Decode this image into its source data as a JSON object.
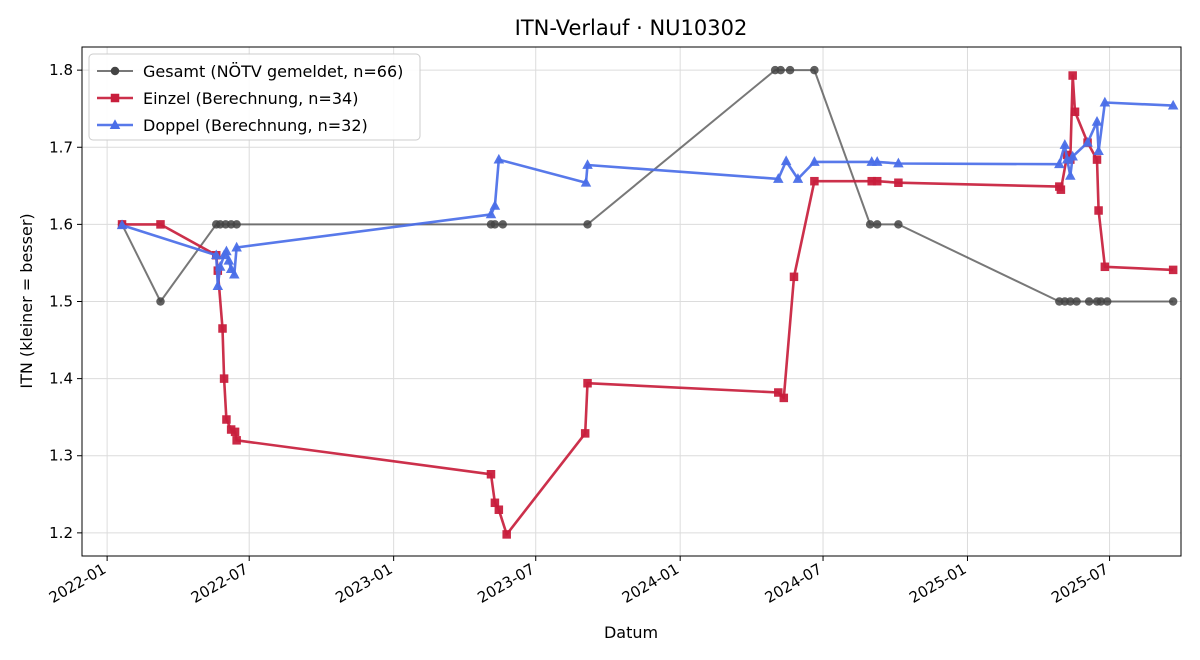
{
  "chart_data": {
    "type": "line",
    "title": "ITN-Verlauf · NU10302",
    "xlabel": "Datum",
    "ylabel": "ITN  (kleiner = besser)",
    "x_axis_type": "date",
    "xlim": [
      "2021-11-30",
      "2025-09-30"
    ],
    "ylim": [
      1.17,
      1.83
    ],
    "x_ticks": [
      "2022-01",
      "2022-07",
      "2023-01",
      "2023-07",
      "2024-01",
      "2024-07",
      "2025-01",
      "2025-07"
    ],
    "y_ticks": [
      1.2,
      1.3,
      1.4,
      1.5,
      1.6,
      1.7,
      1.8
    ],
    "grid": true,
    "legend_position": "top-left",
    "series": [
      {
        "name": "Gesamt (NÖTV gemeldet, n=66)",
        "color": "#444444",
        "marker": "circle",
        "points": [
          [
            "2022-01-20",
            1.6
          ],
          [
            "2022-03-10",
            1.5
          ],
          [
            "2022-05-20",
            1.6
          ],
          [
            "2022-05-25",
            1.6
          ],
          [
            "2022-06-01",
            1.6
          ],
          [
            "2022-06-08",
            1.6
          ],
          [
            "2022-06-15",
            1.6
          ],
          [
            "2023-05-05",
            1.6
          ],
          [
            "2023-05-10",
            1.6
          ],
          [
            "2023-05-20",
            1.6
          ],
          [
            "2023-09-05",
            1.6
          ],
          [
            "2024-05-01",
            1.8
          ],
          [
            "2024-05-08",
            1.8
          ],
          [
            "2024-05-20",
            1.8
          ],
          [
            "2024-06-20",
            1.8
          ],
          [
            "2024-08-30",
            1.6
          ],
          [
            "2024-09-08",
            1.6
          ],
          [
            "2024-10-05",
            1.6
          ],
          [
            "2025-04-28",
            1.5
          ],
          [
            "2025-05-05",
            1.5
          ],
          [
            "2025-05-12",
            1.5
          ],
          [
            "2025-05-20",
            1.5
          ],
          [
            "2025-06-05",
            1.5
          ],
          [
            "2025-06-15",
            1.5
          ],
          [
            "2025-06-20",
            1.5
          ],
          [
            "2025-06-28",
            1.5
          ],
          [
            "2025-09-20",
            1.5
          ]
        ]
      },
      {
        "name": "Einzel (Berechnung, n=34)",
        "color": "#c81e3c",
        "marker": "square",
        "points": [
          [
            "2022-01-20",
            1.6
          ],
          [
            "2022-03-10",
            1.6
          ],
          [
            "2022-05-20",
            1.56
          ],
          [
            "2022-05-22",
            1.54
          ],
          [
            "2022-05-28",
            1.465
          ],
          [
            "2022-05-30",
            1.4
          ],
          [
            "2022-06-02",
            1.347
          ],
          [
            "2022-06-08",
            1.334
          ],
          [
            "2022-06-13",
            1.331
          ],
          [
            "2022-06-15",
            1.32
          ],
          [
            "2023-05-05",
            1.276
          ],
          [
            "2023-05-10",
            1.239
          ],
          [
            "2023-05-15",
            1.23
          ],
          [
            "2023-05-25",
            1.198
          ],
          [
            "2023-09-02",
            1.329
          ],
          [
            "2023-09-05",
            1.394
          ],
          [
            "2024-05-05",
            1.382
          ],
          [
            "2024-05-12",
            1.375
          ],
          [
            "2024-05-25",
            1.532
          ],
          [
            "2024-06-20",
            1.656
          ],
          [
            "2024-09-01",
            1.656
          ],
          [
            "2024-09-08",
            1.656
          ],
          [
            "2024-10-05",
            1.654
          ],
          [
            "2025-04-28",
            1.649
          ],
          [
            "2025-04-30",
            1.645
          ],
          [
            "2025-05-08",
            1.69
          ],
          [
            "2025-05-12",
            1.684
          ],
          [
            "2025-05-15",
            1.793
          ],
          [
            "2025-05-18",
            1.746
          ],
          [
            "2025-06-03",
            1.706
          ],
          [
            "2025-06-15",
            1.684
          ],
          [
            "2025-06-17",
            1.618
          ],
          [
            "2025-06-25",
            1.545
          ],
          [
            "2025-09-20",
            1.541
          ]
        ]
      },
      {
        "name": "Doppel (Berechnung, n=32)",
        "color": "#4a6ee8",
        "marker": "triangle",
        "points": [
          [
            "2022-01-20",
            1.599
          ],
          [
            "2022-05-20",
            1.56
          ],
          [
            "2022-05-22",
            1.52
          ],
          [
            "2022-05-25",
            1.545
          ],
          [
            "2022-05-30",
            1.56
          ],
          [
            "2022-06-02",
            1.565
          ],
          [
            "2022-06-05",
            1.553
          ],
          [
            "2022-06-08",
            1.542
          ],
          [
            "2022-06-12",
            1.535
          ],
          [
            "2022-06-15",
            1.57
          ],
          [
            "2023-05-05",
            1.613
          ],
          [
            "2023-05-10",
            1.624
          ],
          [
            "2023-05-15",
            1.684
          ],
          [
            "2023-09-03",
            1.654
          ],
          [
            "2023-09-05",
            1.677
          ],
          [
            "2024-05-05",
            1.659
          ],
          [
            "2024-05-15",
            1.682
          ],
          [
            "2024-05-30",
            1.659
          ],
          [
            "2024-06-20",
            1.681
          ],
          [
            "2024-09-01",
            1.681
          ],
          [
            "2024-09-08",
            1.681
          ],
          [
            "2024-10-05",
            1.679
          ],
          [
            "2025-04-28",
            1.678
          ],
          [
            "2025-05-05",
            1.703
          ],
          [
            "2025-05-08",
            1.684
          ],
          [
            "2025-05-12",
            1.663
          ],
          [
            "2025-05-15",
            1.688
          ],
          [
            "2025-06-03",
            1.706
          ],
          [
            "2025-06-15",
            1.733
          ],
          [
            "2025-06-17",
            1.695
          ],
          [
            "2025-06-25",
            1.758
          ],
          [
            "2025-09-20",
            1.754
          ]
        ]
      }
    ]
  }
}
